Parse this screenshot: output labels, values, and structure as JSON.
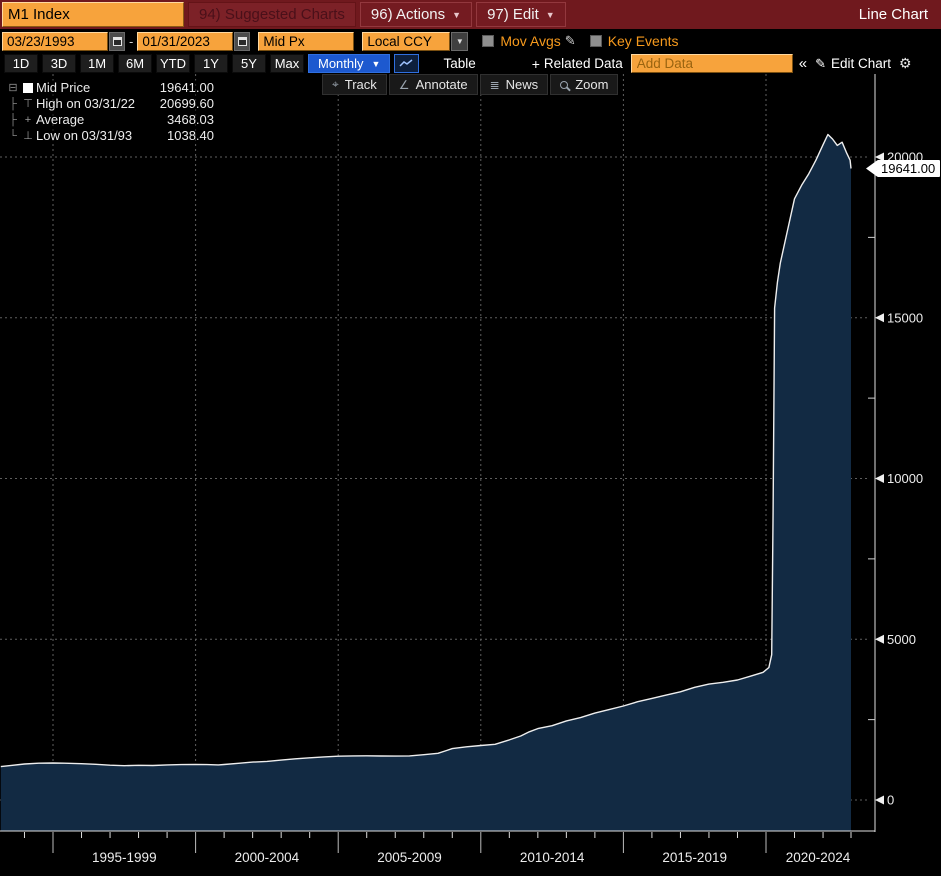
{
  "titlebar": {
    "ticker": "M1 Index",
    "suggested_charts": "94) Suggested Charts",
    "actions": "96) Actions",
    "edit": "97) Edit",
    "chart_type_title": "Line Chart"
  },
  "controls": {
    "date_from": "03/23/1993",
    "date_to": "01/31/2023",
    "price_field": "Mid Px",
    "currency": "Local CCY",
    "mov_avgs_label": "Mov Avgs",
    "key_events_label": "Key Events"
  },
  "toolbar": {
    "ranges": [
      "1D",
      "3D",
      "1M",
      "6M",
      "YTD",
      "1Y",
      "5Y",
      "Max"
    ],
    "period": "Monthly",
    "table_label": "Table",
    "related_data_label": "Related Data",
    "add_data_placeholder": "Add Data",
    "collapse_label": "«",
    "edit_chart_label": "Edit Chart"
  },
  "legend": {
    "rows": [
      {
        "marker": "swatch",
        "label": "Mid Price",
        "value": "19641.00"
      },
      {
        "marker": "high",
        "label": "High on 03/31/22",
        "value": "20699.60"
      },
      {
        "marker": "avg",
        "label": "Average",
        "value": "3468.03"
      },
      {
        "marker": "low",
        "label": "Low on 03/31/93",
        "value": "1038.40"
      }
    ]
  },
  "chart_tools": [
    "Track",
    "Annotate",
    "News",
    "Zoom"
  ],
  "last_price_label": "19641.00",
  "colors": {
    "topbar_red": "#70191e",
    "amber": "#f7a33c",
    "orange_text": "#f79a1d",
    "period_blue": "#1d59cf",
    "area_fill": "#122a43",
    "line": "#eeeeee",
    "grid": "#5f5f5f",
    "axis": "#e0e0e0"
  },
  "chart_data": {
    "type": "area",
    "title": "M1 Index — Mid Price, Monthly",
    "x_unit": "decimal_year",
    "x_range": [
      1993.17,
      2023.08
    ],
    "ylim": [
      0,
      21800
    ],
    "y_ticks": [
      0,
      5000,
      10000,
      15000,
      20000
    ],
    "y_minor_ticks": [
      2500,
      7500,
      12500,
      17500
    ],
    "grid": "dashed",
    "x_section_labels": [
      "1995-1999",
      "2000-2004",
      "2005-2009",
      "2010-2014",
      "2015-2019",
      "2020-2024"
    ],
    "x_section_boundaries": [
      1995,
      2000,
      2005,
      2010,
      2015,
      2020
    ],
    "stats": {
      "last": 19641.0,
      "high": {
        "date": "03/31/22",
        "value": 20699.6
      },
      "average": 3468.03,
      "low": {
        "date": "03/31/93",
        "value": 1038.4
      }
    },
    "series": [
      {
        "name": "Mid Price",
        "points": [
          [
            1993.17,
            1038
          ],
          [
            1993.5,
            1070
          ],
          [
            1994,
            1120
          ],
          [
            1994.5,
            1145
          ],
          [
            1995,
            1150
          ],
          [
            1995.4,
            1145
          ],
          [
            1996,
            1128
          ],
          [
            1996.5,
            1110
          ],
          [
            1997,
            1082
          ],
          [
            1997.5,
            1068
          ],
          [
            1998,
            1078
          ],
          [
            1998.5,
            1072
          ],
          [
            1999,
            1092
          ],
          [
            1999.5,
            1100
          ],
          [
            2000,
            1108
          ],
          [
            2000.4,
            1100
          ],
          [
            2000.8,
            1092
          ],
          [
            2001,
            1105
          ],
          [
            2001.5,
            1142
          ],
          [
            2002,
            1180
          ],
          [
            2002.5,
            1200
          ],
          [
            2003,
            1240
          ],
          [
            2003.5,
            1282
          ],
          [
            2004,
            1312
          ],
          [
            2004.5,
            1342
          ],
          [
            2005,
            1362
          ],
          [
            2005.5,
            1372
          ],
          [
            2006,
            1376
          ],
          [
            2006.5,
            1370
          ],
          [
            2007,
            1366
          ],
          [
            2007.5,
            1372
          ],
          [
            2008,
            1408
          ],
          [
            2008.5,
            1452
          ],
          [
            2008.8,
            1540
          ],
          [
            2009,
            1600
          ],
          [
            2009.5,
            1655
          ],
          [
            2010,
            1695
          ],
          [
            2010.5,
            1732
          ],
          [
            2011,
            1870
          ],
          [
            2011.4,
            1990
          ],
          [
            2011.7,
            2120
          ],
          [
            2012,
            2220
          ],
          [
            2012.5,
            2312
          ],
          [
            2013,
            2460
          ],
          [
            2013.5,
            2562
          ],
          [
            2014,
            2702
          ],
          [
            2014.5,
            2812
          ],
          [
            2015,
            2925
          ],
          [
            2015.5,
            3058
          ],
          [
            2016,
            3160
          ],
          [
            2016.5,
            3262
          ],
          [
            2017,
            3365
          ],
          [
            2017.5,
            3505
          ],
          [
            2018,
            3605
          ],
          [
            2018.5,
            3662
          ],
          [
            2019,
            3732
          ],
          [
            2019.5,
            3862
          ],
          [
            2019.9,
            3972
          ],
          [
            2020.1,
            4120
          ],
          [
            2020.2,
            4520
          ],
          [
            2020.25,
            9000
          ],
          [
            2020.3,
            15300
          ],
          [
            2020.4,
            16100
          ],
          [
            2020.5,
            16700
          ],
          [
            2020.75,
            17700
          ],
          [
            2021,
            18700
          ],
          [
            2021.25,
            19120
          ],
          [
            2021.5,
            19480
          ],
          [
            2021.75,
            19900
          ],
          [
            2022,
            20380
          ],
          [
            2022.17,
            20699.6
          ],
          [
            2022.33,
            20560
          ],
          [
            2022.5,
            20360
          ],
          [
            2022.67,
            20460
          ],
          [
            2022.83,
            20120
          ],
          [
            2022.95,
            19900
          ],
          [
            2023.08,
            19641
          ]
        ]
      }
    ]
  }
}
